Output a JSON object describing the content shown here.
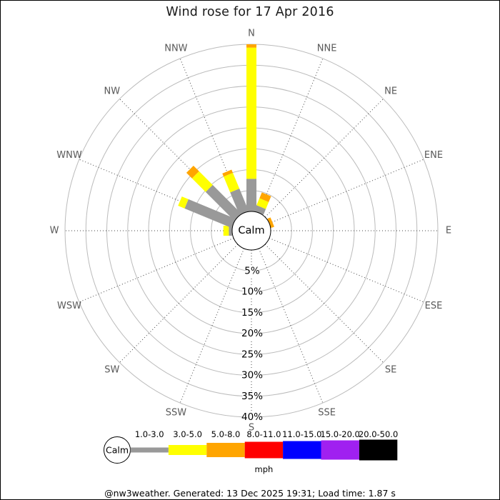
{
  "title": "Wind rose for 17 Apr 2016",
  "footer": {
    "text": "@nw3weather. Generated: 13 Dec 2025 19:31; Load time: 1.87 s"
  },
  "chart_data": {
    "type": "windrose",
    "title": "Wind rose for 17 Apr 2016",
    "units_label": "mph",
    "center_label": "Calm",
    "radial_axis": {
      "tick_percents": [
        5,
        10,
        15,
        20,
        25,
        30,
        35,
        40
      ],
      "tick_labels": [
        "5%",
        "10%",
        "15%",
        "20%",
        "25%",
        "30%",
        "35%",
        "40%"
      ],
      "max_percent": 40,
      "grid": true
    },
    "directions": [
      "N",
      "NNE",
      "NE",
      "ENE",
      "E",
      "ESE",
      "SE",
      "SSE",
      "S",
      "SSW",
      "SW",
      "WSW",
      "W",
      "WNW",
      "NW",
      "NNW"
    ],
    "speed_bins": [
      {
        "label": "1.0-3.0",
        "color": "#999999"
      },
      {
        "label": "3.0-5.0",
        "color": "#FFFF00"
      },
      {
        "label": "5.0-8.0",
        "color": "#FFA500"
      },
      {
        "label": "8.0-11.0",
        "color": "#FF0000"
      },
      {
        "label": "11.0-15.0",
        "color": "#0000FF"
      },
      {
        "label": "15.0-20.0",
        "color": "#A020F0"
      },
      {
        "label": "20.0-50.0",
        "color": "#000000"
      }
    ],
    "series": [
      {
        "direction": "N",
        "segments": [
          {
            "bin": "1.0-3.0",
            "from": 0,
            "to": 7.8
          },
          {
            "bin": "3.0-5.0",
            "from": 7.8,
            "to": 39.2
          },
          {
            "bin": "5.0-8.0",
            "from": 39.2,
            "to": 40.0
          }
        ]
      },
      {
        "direction": "NNE",
        "segments": [
          {
            "bin": "1.0-3.0",
            "from": 0,
            "to": 1.5
          },
          {
            "bin": "3.0-5.0",
            "from": 1.5,
            "to": 3.3
          },
          {
            "bin": "5.0-8.0",
            "from": 3.3,
            "to": 4.8
          }
        ]
      },
      {
        "direction": "ENE",
        "segments": [
          {
            "bin": "5.0-8.0",
            "from": 0,
            "to": 0.8
          }
        ]
      },
      {
        "direction": "W",
        "segments": [
          {
            "bin": "1.0-3.0",
            "from": 0,
            "to": 0.8
          },
          {
            "bin": "3.0-5.0",
            "from": 0.8,
            "to": 2.1
          }
        ]
      },
      {
        "direction": "WNW",
        "segments": [
          {
            "bin": "1.0-3.0",
            "from": 0,
            "to": 12.2
          },
          {
            "bin": "3.0-5.0",
            "from": 12.2,
            "to": 13.9
          }
        ]
      },
      {
        "direction": "NW",
        "segments": [
          {
            "bin": "1.0-3.0",
            "from": 0,
            "to": 9.7
          },
          {
            "bin": "3.0-5.0",
            "from": 9.7,
            "to": 14.3
          },
          {
            "bin": "5.0-8.0",
            "from": 14.3,
            "to": 16.2
          }
        ]
      },
      {
        "direction": "NNW",
        "segments": [
          {
            "bin": "1.0-3.0",
            "from": 0,
            "to": 5.8
          },
          {
            "bin": "3.0-5.0",
            "from": 5.8,
            "to": 9.9
          },
          {
            "bin": "5.0-8.0",
            "from": 9.9,
            "to": 10.7
          }
        ]
      }
    ],
    "legend": {
      "calm_label": "Calm",
      "units_label": "mph",
      "bin_labels": [
        "1.0-3.0",
        "3.0-5.0",
        "5.0-8.0",
        "8.0-11.0",
        "11.0-15.0",
        "15.0-20.0",
        "20.0-50.0"
      ]
    },
    "colors": {
      "ring_grid": "#bbbbbb",
      "radial_grid": "#444444",
      "direction_label": "#595959",
      "tick_label": "#000000"
    }
  }
}
